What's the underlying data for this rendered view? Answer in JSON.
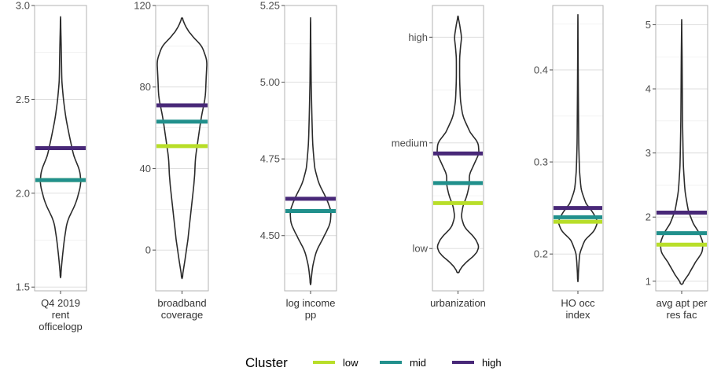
{
  "chart_data": {
    "type": "violin",
    "legend": {
      "title": "Cluster",
      "position": "bottom",
      "entries": [
        {
          "name": "low",
          "color": "#b8de29"
        },
        {
          "name": "mid",
          "color": "#21908c"
        },
        {
          "name": "high",
          "color": "#482878"
        }
      ]
    },
    "grid": true,
    "panels": [
      {
        "id": "rent",
        "xlabel": [
          "Q4 2019",
          "rent",
          "officelogp"
        ],
        "ylim": [
          1.48,
          3.0
        ],
        "ticks": [
          {
            "v": 1.5,
            "t": "1.5"
          },
          {
            "v": 2.0,
            "t": "2.0"
          },
          {
            "v": 2.5,
            "t": "2.5"
          },
          {
            "v": 3.0,
            "t": "3.0"
          }
        ],
        "minor_ticks": [
          1.75,
          2.25,
          2.75
        ],
        "cluster_values": {
          "low": 2.07,
          "mid": 2.07,
          "high": 2.24
        },
        "density": [
          [
            1.55,
            0.0
          ],
          [
            1.65,
            0.04
          ],
          [
            1.75,
            0.09
          ],
          [
            1.85,
            0.16
          ],
          [
            1.95,
            0.38
          ],
          [
            2.05,
            0.5
          ],
          [
            2.12,
            0.47
          ],
          [
            2.2,
            0.32
          ],
          [
            2.3,
            0.22
          ],
          [
            2.4,
            0.13
          ],
          [
            2.5,
            0.07
          ],
          [
            2.6,
            0.03
          ],
          [
            2.75,
            0.02
          ],
          [
            2.94,
            0.0
          ]
        ]
      },
      {
        "id": "broadband",
        "xlabel": [
          "broadband",
          "coverage"
        ],
        "ylim": [
          -20,
          120
        ],
        "ticks": [
          {
            "v": 0,
            "t": "0"
          },
          {
            "v": 40,
            "t": "40"
          },
          {
            "v": 80,
            "t": "80"
          },
          {
            "v": 120,
            "t": "120"
          }
        ],
        "minor_ticks": [
          -20,
          20,
          60,
          100
        ],
        "cluster_values": {
          "low": 51,
          "mid": 63,
          "high": 71
        },
        "density": [
          [
            -14,
            0.0
          ],
          [
            -5,
            0.07
          ],
          [
            5,
            0.14
          ],
          [
            20,
            0.22
          ],
          [
            35,
            0.3
          ],
          [
            45,
            0.32
          ],
          [
            55,
            0.39
          ],
          [
            65,
            0.46
          ],
          [
            75,
            0.56
          ],
          [
            85,
            0.58
          ],
          [
            93,
            0.6
          ],
          [
            100,
            0.48
          ],
          [
            106,
            0.2
          ],
          [
            110,
            0.08
          ],
          [
            114,
            0.0
          ]
        ]
      },
      {
        "id": "income",
        "xlabel": [
          "log income",
          "pp"
        ],
        "ylim": [
          4.32,
          5.25
        ],
        "ticks": [
          {
            "v": 4.5,
            "t": "4.50"
          },
          {
            "v": 4.75,
            "t": "4.75"
          },
          {
            "v": 5.0,
            "t": "5.00"
          },
          {
            "v": 5.25,
            "t": "5.25"
          }
        ],
        "minor_ticks": [
          4.375,
          4.625,
          4.875,
          5.125
        ],
        "cluster_values": {
          "low": 4.58,
          "mid": 4.58,
          "high": 4.62
        },
        "density": [
          [
            4.34,
            0.0
          ],
          [
            4.4,
            0.05
          ],
          [
            4.45,
            0.14
          ],
          [
            4.5,
            0.34
          ],
          [
            4.54,
            0.48
          ],
          [
            4.58,
            0.5
          ],
          [
            4.62,
            0.39
          ],
          [
            4.67,
            0.2
          ],
          [
            4.72,
            0.1
          ],
          [
            4.8,
            0.05
          ],
          [
            4.9,
            0.03
          ],
          [
            5.0,
            0.015
          ],
          [
            5.21,
            0.0
          ]
        ]
      },
      {
        "id": "urbanization",
        "xlabel": [
          "urbanization"
        ],
        "ylim": [
          0.6,
          3.3
        ],
        "ticks": [
          {
            "v": 1,
            "t": "low"
          },
          {
            "v": 2,
            "t": "medium"
          },
          {
            "v": 3,
            "t": "high"
          }
        ],
        "minor_ticks": [
          1.5,
          2.5
        ],
        "cluster_values": {
          "low": 1.43,
          "mid": 1.62,
          "high": 1.9
        },
        "density": [
          [
            0.77,
            0.0
          ],
          [
            0.85,
            0.14
          ],
          [
            0.95,
            0.45
          ],
          [
            1.02,
            0.52
          ],
          [
            1.1,
            0.42
          ],
          [
            1.2,
            0.16
          ],
          [
            1.3,
            0.08
          ],
          [
            1.4,
            0.12
          ],
          [
            1.5,
            0.22
          ],
          [
            1.6,
            0.28
          ],
          [
            1.7,
            0.28
          ],
          [
            1.8,
            0.4
          ],
          [
            1.9,
            0.52
          ],
          [
            2.0,
            0.5
          ],
          [
            2.1,
            0.3
          ],
          [
            2.25,
            0.12
          ],
          [
            2.4,
            0.06
          ],
          [
            2.6,
            0.04
          ],
          [
            2.8,
            0.04
          ],
          [
            2.9,
            0.06
          ],
          [
            3.0,
            0.09
          ],
          [
            3.12,
            0.04
          ],
          [
            3.2,
            0.0
          ]
        ]
      },
      {
        "id": "hoocc",
        "xlabel": [
          "HO occ",
          "index"
        ],
        "ylim": [
          0.16,
          0.47
        ],
        "ticks": [
          {
            "v": 0.2,
            "t": "0.2"
          },
          {
            "v": 0.3,
            "t": "0.3"
          },
          {
            "v": 0.4,
            "t": "0.4"
          }
        ],
        "minor_ticks": [
          0.25,
          0.35,
          0.45
        ],
        "cluster_values": {
          "low": 0.235,
          "mid": 0.24,
          "high": 0.25
        },
        "density": [
          [
            0.17,
            0.0
          ],
          [
            0.2,
            0.04
          ],
          [
            0.215,
            0.17
          ],
          [
            0.225,
            0.41
          ],
          [
            0.235,
            0.5
          ],
          [
            0.245,
            0.38
          ],
          [
            0.255,
            0.2
          ],
          [
            0.27,
            0.08
          ],
          [
            0.29,
            0.04
          ],
          [
            0.32,
            0.02
          ],
          [
            0.38,
            0.01
          ],
          [
            0.46,
            0.0
          ]
        ]
      },
      {
        "id": "apt",
        "xlabel": [
          "avg apt per",
          "res fac"
        ],
        "ylim": [
          0.85,
          5.3
        ],
        "ticks": [
          {
            "v": 1,
            "t": "1"
          },
          {
            "v": 2,
            "t": "2"
          },
          {
            "v": 3,
            "t": "3"
          },
          {
            "v": 4,
            "t": "4"
          },
          {
            "v": 5,
            "t": "5"
          }
        ],
        "minor_ticks": [
          1.5,
          2.5,
          3.5,
          4.5
        ],
        "cluster_values": {
          "low": 1.57,
          "mid": 1.75,
          "high": 2.07
        },
        "density": [
          [
            0.95,
            0.0
          ],
          [
            1.1,
            0.16
          ],
          [
            1.3,
            0.34
          ],
          [
            1.45,
            0.5
          ],
          [
            1.6,
            0.52
          ],
          [
            1.75,
            0.43
          ],
          [
            1.9,
            0.28
          ],
          [
            2.1,
            0.16
          ],
          [
            2.4,
            0.08
          ],
          [
            2.8,
            0.04
          ],
          [
            3.5,
            0.02
          ],
          [
            4.5,
            0.01
          ],
          [
            5.08,
            0.0
          ]
        ]
      }
    ]
  }
}
